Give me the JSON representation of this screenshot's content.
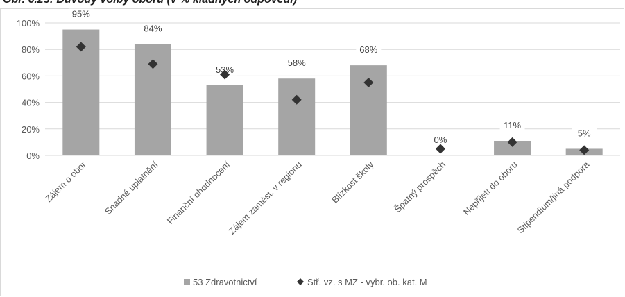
{
  "caption": "Obr. 6.23: Důvody volby oboru (v % kladných odpovědí)",
  "chart_data": {
    "type": "bar",
    "title": "",
    "xlabel": "",
    "ylabel": "",
    "ylim": [
      0,
      100
    ],
    "y_ticks": [
      "0%",
      "20%",
      "40%",
      "60%",
      "80%",
      "100%"
    ],
    "grid": true,
    "legend_position": "bottom",
    "categories": [
      "Zájem o obor",
      "Snadné uplatnění",
      "Finanční ohodnocení",
      "Zájem zaměst. v regionu",
      "Blízkost školy",
      "Špatný prospěch",
      "Nepřijetí do oboru",
      "Stipendium/jiná podpora"
    ],
    "series": [
      {
        "name": "53 Zdravotnictví",
        "type": "bar",
        "color": "#a5a5a5",
        "values": [
          95,
          84,
          53,
          58,
          68,
          0,
          11,
          5
        ],
        "labels": [
          "95%",
          "84%",
          "53%",
          "58%",
          "68%",
          "0%",
          "11%",
          "5%"
        ]
      },
      {
        "name": "Stř. vz. s MZ - vybr. ob. kat. M",
        "type": "scatter",
        "marker": "diamond",
        "color": "#333333",
        "values": [
          82,
          69,
          61,
          42,
          55,
          5,
          10,
          4
        ]
      }
    ]
  }
}
